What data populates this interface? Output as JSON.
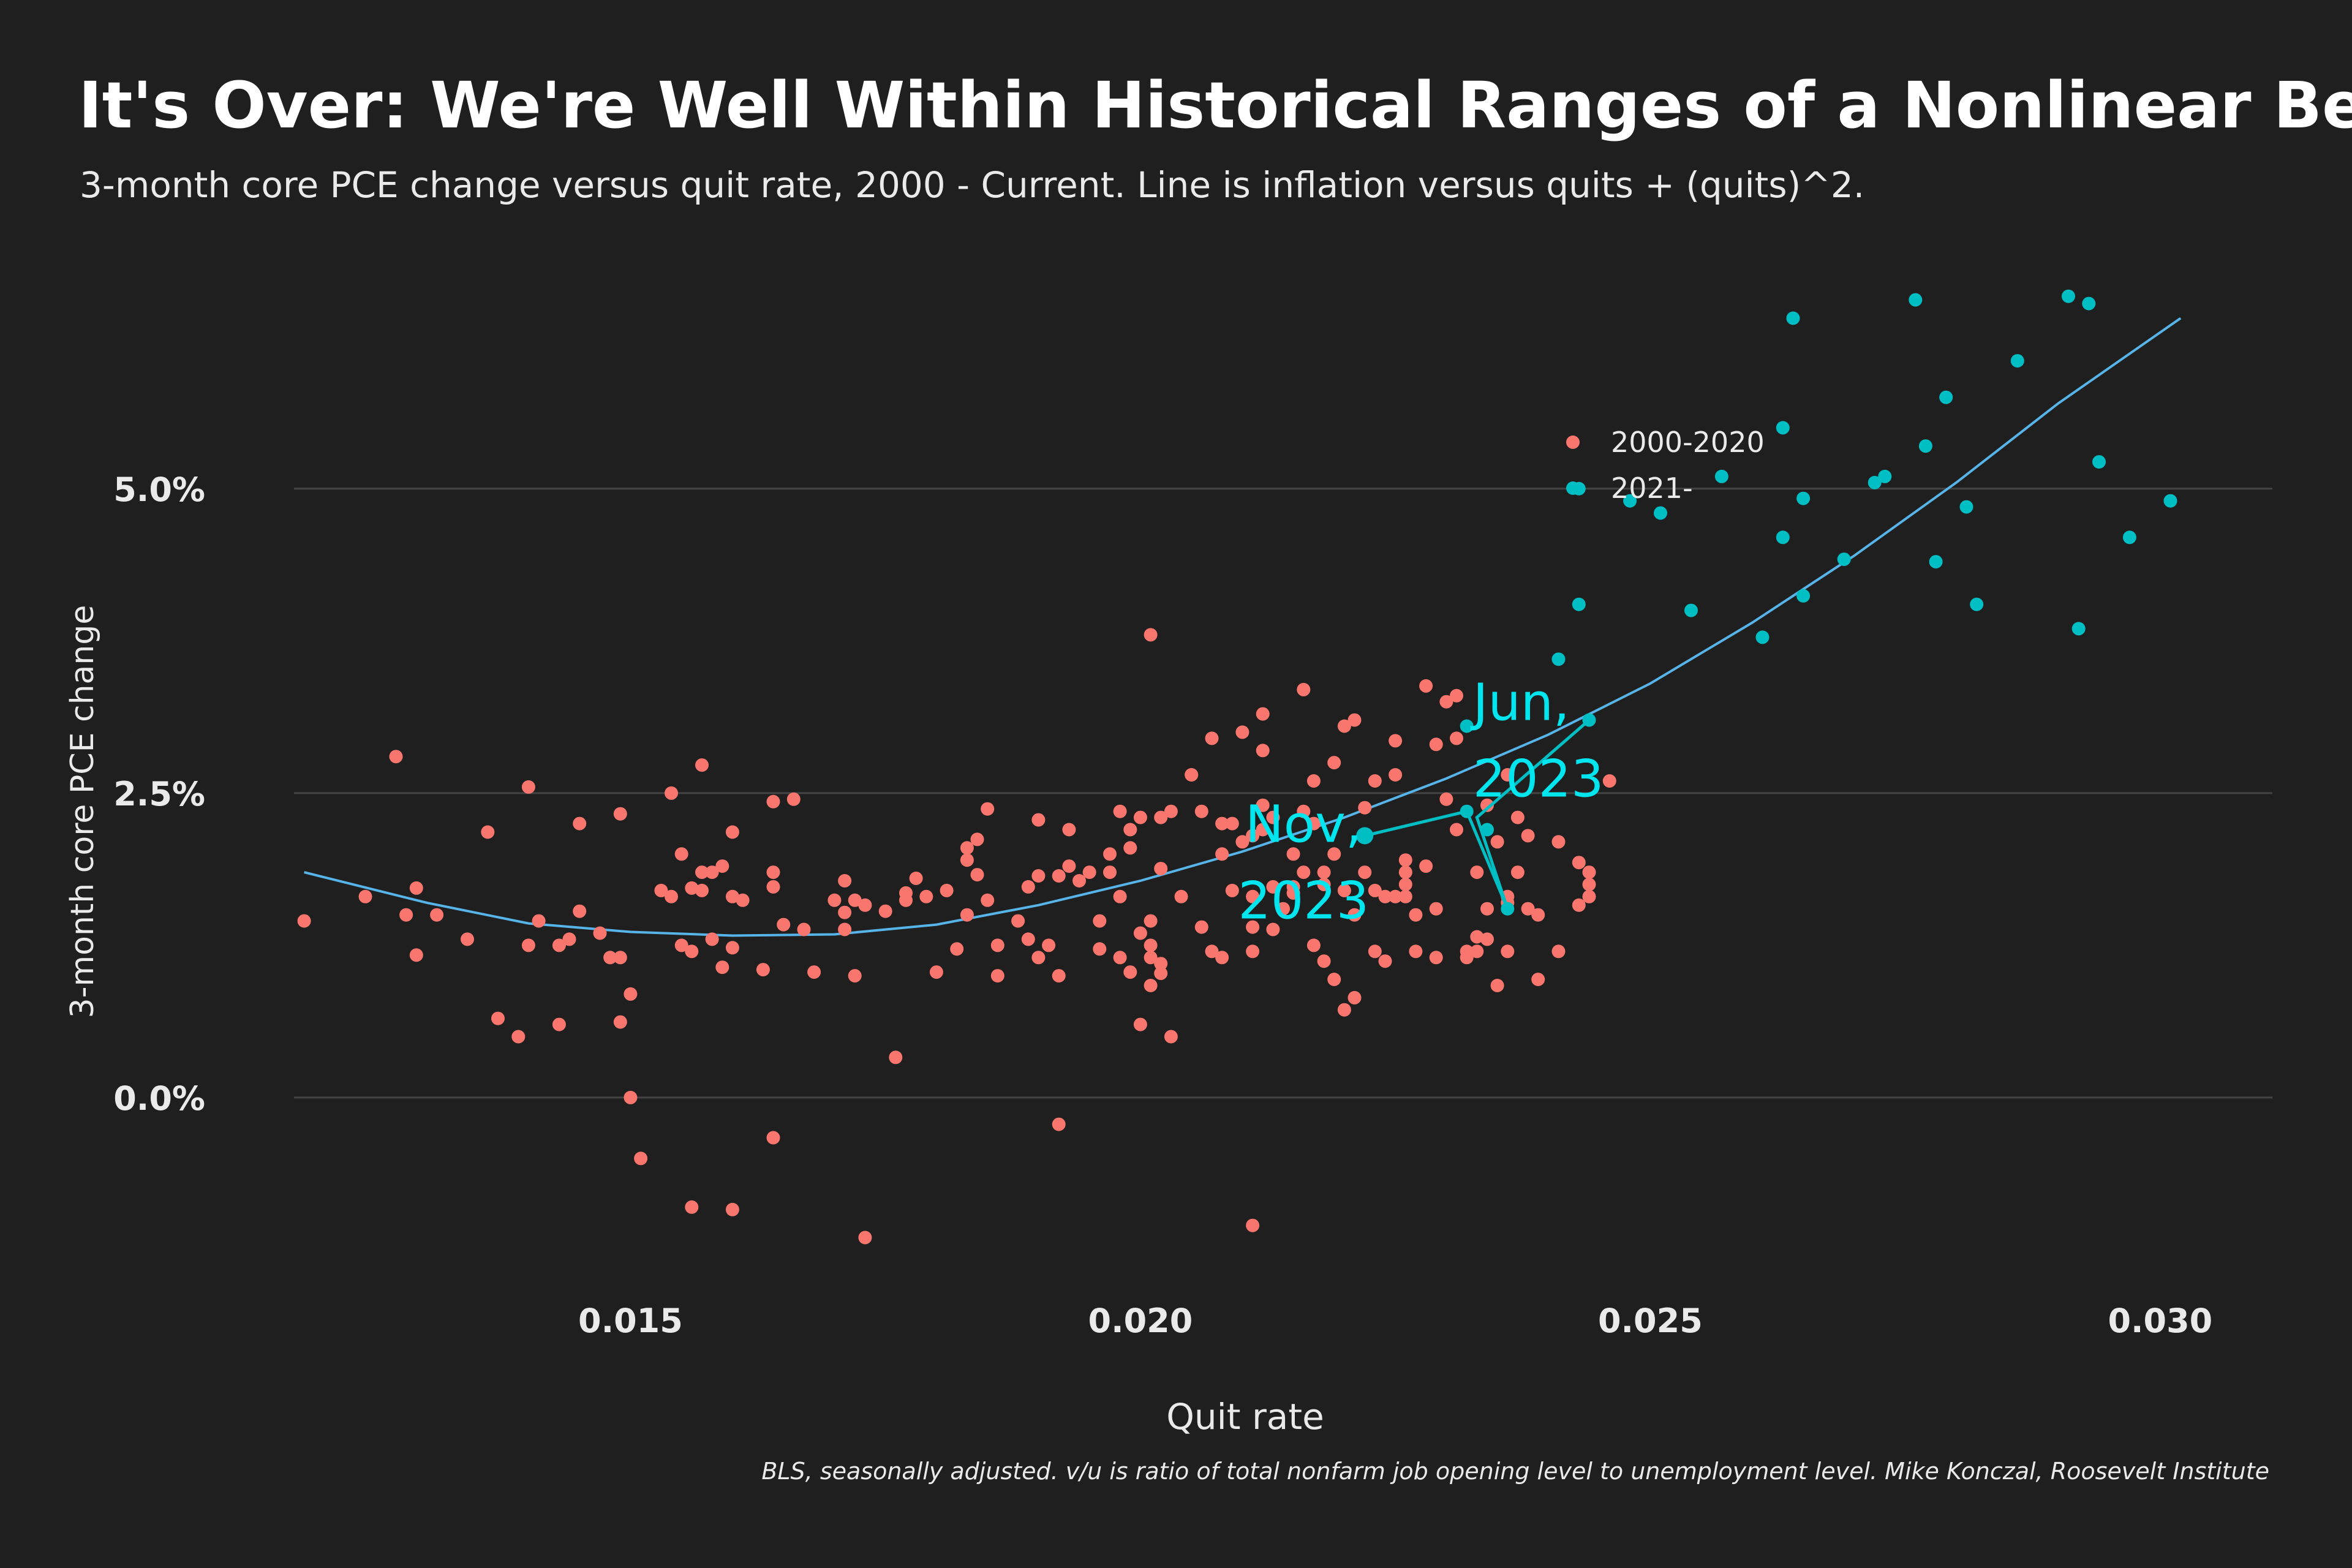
{
  "chart_data": {
    "type": "scatter",
    "title": "It's Over: We're Well Within Historical Ranges of a Nonlinear Beveridge-Phillips Curve",
    "subtitle": "3-month core PCE change versus quit rate, 2000 - Current. Line is inflation versus quits + (quits)^2.",
    "xlabel": "Quit rate",
    "ylabel": "3-month core PCE change",
    "caption": "BLS, seasonally adjusted. v/u is ratio of total nonfarm job opening level to unemployment level. Mike Konczal, Roosevelt Institute",
    "xlim": [
      0.0117,
      0.0311
    ],
    "ylim": [
      -1.6,
      6.85
    ],
    "xticks": [
      0.015,
      0.02,
      0.025,
      0.03
    ],
    "xtick_labels": [
      "0.015",
      "0.020",
      "0.025",
      "0.030"
    ],
    "yticks": [
      0.0,
      2.5,
      5.0
    ],
    "ytick_labels": [
      "0.0%",
      "2.5%",
      "5.0%"
    ],
    "grid": "horizontal",
    "legend_position": "top-right",
    "colors": {
      "s2000": "#f8766d",
      "s2021": "#00bfc4",
      "fit": "#56b4e9",
      "path": "#00bfc4",
      "annotation": "#00e5ee",
      "text": "#eaeaea",
      "grid": "#444444"
    },
    "series": [
      {
        "name": "2000-2020",
        "points": [
          [
            0.0118,
            1.45
          ],
          [
            0.0124,
            1.65
          ],
          [
            0.0127,
            2.8
          ],
          [
            0.0128,
            1.5
          ],
          [
            0.0129,
            1.72
          ],
          [
            0.0129,
            1.17
          ],
          [
            0.0131,
            1.5
          ],
          [
            0.0134,
            1.3
          ],
          [
            0.0136,
            2.18
          ],
          [
            0.0137,
            0.65
          ],
          [
            0.0139,
            0.5
          ],
          [
            0.014,
            1.25
          ],
          [
            0.014,
            2.55
          ],
          [
            0.0141,
            1.45
          ],
          [
            0.0143,
            1.25
          ],
          [
            0.0143,
            0.6
          ],
          [
            0.0144,
            1.3
          ],
          [
            0.0145,
            1.53
          ],
          [
            0.0145,
            2.25
          ],
          [
            0.0147,
            1.35
          ],
          [
            0.0148,
            1.15
          ],
          [
            0.0149,
            0.62
          ],
          [
            0.0149,
            1.15
          ],
          [
            0.0149,
            2.33
          ],
          [
            0.015,
            0.85
          ],
          [
            0.015,
            0.0
          ],
          [
            0.0151,
            -0.5
          ],
          [
            0.0153,
            1.7
          ],
          [
            0.0154,
            1.65
          ],
          [
            0.0154,
            2.5
          ],
          [
            0.0155,
            2.0
          ],
          [
            0.0155,
            1.25
          ],
          [
            0.0156,
            1.2
          ],
          [
            0.0156,
            1.72
          ],
          [
            0.0156,
            -0.9
          ],
          [
            0.0157,
            1.7
          ],
          [
            0.0157,
            1.85
          ],
          [
            0.0157,
            2.73
          ],
          [
            0.0158,
            1.3
          ],
          [
            0.0158,
            1.85
          ],
          [
            0.0159,
            1.9
          ],
          [
            0.0159,
            1.07
          ],
          [
            0.016,
            1.23
          ],
          [
            0.016,
            1.65
          ],
          [
            0.016,
            2.18
          ],
          [
            0.016,
            -0.92
          ],
          [
            0.0161,
            1.62
          ],
          [
            0.0163,
            1.05
          ],
          [
            0.0164,
            1.73
          ],
          [
            0.0164,
            2.43
          ],
          [
            0.0164,
            1.85
          ],
          [
            0.0164,
            -0.33
          ],
          [
            0.0165,
            1.42
          ],
          [
            0.0166,
            2.45
          ],
          [
            0.0167,
            1.38
          ],
          [
            0.0168,
            1.03
          ],
          [
            0.017,
            1.62
          ],
          [
            0.0171,
            1.78
          ],
          [
            0.0171,
            1.52
          ],
          [
            0.0171,
            1.38
          ],
          [
            0.0172,
            1.62
          ],
          [
            0.0172,
            1.0
          ],
          [
            0.0173,
            1.58
          ],
          [
            0.0173,
            -1.15
          ],
          [
            0.0175,
            1.53
          ],
          [
            0.0176,
            0.33
          ],
          [
            0.0177,
            1.62
          ],
          [
            0.0177,
            1.68
          ],
          [
            0.0178,
            1.8
          ],
          [
            0.0179,
            1.65
          ],
          [
            0.018,
            1.03
          ],
          [
            0.0181,
            1.7
          ],
          [
            0.0182,
            1.22
          ],
          [
            0.0183,
            2.05
          ],
          [
            0.0183,
            1.95
          ],
          [
            0.0183,
            1.5
          ],
          [
            0.0184,
            1.83
          ],
          [
            0.0184,
            2.12
          ],
          [
            0.0185,
            2.37
          ],
          [
            0.0185,
            1.62
          ],
          [
            0.0186,
            1.0
          ],
          [
            0.0186,
            1.25
          ],
          [
            0.0188,
            1.45
          ],
          [
            0.0189,
            1.3
          ],
          [
            0.0189,
            1.73
          ],
          [
            0.019,
            1.82
          ],
          [
            0.019,
            2.28
          ],
          [
            0.019,
            1.15
          ],
          [
            0.0191,
            1.25
          ],
          [
            0.0192,
            1.82
          ],
          [
            0.0192,
            1.0
          ],
          [
            0.0192,
            -0.22
          ],
          [
            0.0193,
            1.9
          ],
          [
            0.0193,
            2.2
          ],
          [
            0.0194,
            1.78
          ],
          [
            0.0195,
            1.85
          ],
          [
            0.0196,
            1.45
          ],
          [
            0.0196,
            1.22
          ],
          [
            0.0197,
            1.85
          ],
          [
            0.0197,
            2.0
          ],
          [
            0.0198,
            2.35
          ],
          [
            0.0198,
            1.65
          ],
          [
            0.0198,
            1.15
          ],
          [
            0.0199,
            2.2
          ],
          [
            0.0199,
            2.05
          ],
          [
            0.0199,
            1.03
          ],
          [
            0.02,
            1.35
          ],
          [
            0.02,
            2.3
          ],
          [
            0.02,
            0.6
          ],
          [
            0.0201,
            1.15
          ],
          [
            0.0201,
            1.45
          ],
          [
            0.0201,
            0.92
          ],
          [
            0.0201,
            3.8
          ],
          [
            0.0201,
            1.25
          ],
          [
            0.0202,
            1.88
          ],
          [
            0.0202,
            2.3
          ],
          [
            0.0202,
            1.1
          ],
          [
            0.0202,
            1.02
          ],
          [
            0.0203,
            2.35
          ],
          [
            0.0203,
            0.5
          ],
          [
            0.0204,
            1.65
          ],
          [
            0.0205,
            2.65
          ],
          [
            0.0205,
            2.65
          ],
          [
            0.0206,
            2.35
          ],
          [
            0.0206,
            1.4
          ],
          [
            0.0207,
            2.95
          ],
          [
            0.0207,
            1.2
          ],
          [
            0.0208,
            2.25
          ],
          [
            0.0208,
            1.15
          ],
          [
            0.0208,
            2.0
          ],
          [
            0.0209,
            2.25
          ],
          [
            0.0209,
            1.7
          ],
          [
            0.021,
            3.0
          ],
          [
            0.021,
            2.1
          ],
          [
            0.0211,
            1.65
          ],
          [
            0.0211,
            2.15
          ],
          [
            0.0211,
            1.4
          ],
          [
            0.0211,
            1.2
          ],
          [
            0.0211,
            -1.05
          ],
          [
            0.0212,
            2.4
          ],
          [
            0.0212,
            2.2
          ],
          [
            0.0212,
            3.15
          ],
          [
            0.0212,
            2.85
          ],
          [
            0.0213,
            2.3
          ],
          [
            0.0213,
            1.73
          ],
          [
            0.0213,
            1.38
          ],
          [
            0.0214,
            1.55
          ],
          [
            0.0215,
            1.73
          ],
          [
            0.0215,
            2.0
          ],
          [
            0.0215,
            1.68
          ],
          [
            0.0216,
            3.35
          ],
          [
            0.0216,
            2.35
          ],
          [
            0.0216,
            1.85
          ],
          [
            0.0217,
            2.25
          ],
          [
            0.0217,
            2.6
          ],
          [
            0.0217,
            1.25
          ],
          [
            0.0218,
            1.85
          ],
          [
            0.0218,
            1.75
          ],
          [
            0.0218,
            1.12
          ],
          [
            0.0219,
            2.0
          ],
          [
            0.0219,
            2.75
          ],
          [
            0.0219,
            0.97
          ],
          [
            0.022,
            1.7
          ],
          [
            0.022,
            3.05
          ],
          [
            0.022,
            0.72
          ],
          [
            0.0221,
            1.5
          ],
          [
            0.0221,
            0.82
          ],
          [
            0.0221,
            3.1
          ],
          [
            0.0222,
            1.85
          ],
          [
            0.0222,
            2.38
          ],
          [
            0.0223,
            2.6
          ],
          [
            0.0223,
            1.2
          ],
          [
            0.0223,
            1.7
          ],
          [
            0.0224,
            1.65
          ],
          [
            0.0224,
            1.12
          ],
          [
            0.0225,
            2.93
          ],
          [
            0.0225,
            2.65
          ],
          [
            0.0225,
            1.65
          ],
          [
            0.0226,
            1.65
          ],
          [
            0.0226,
            1.95
          ],
          [
            0.0226,
            1.85
          ],
          [
            0.0226,
            1.75
          ],
          [
            0.0227,
            1.5
          ],
          [
            0.0227,
            1.2
          ],
          [
            0.0228,
            3.38
          ],
          [
            0.0228,
            1.9
          ],
          [
            0.0229,
            1.55
          ],
          [
            0.0229,
            1.15
          ],
          [
            0.0229,
            2.9
          ],
          [
            0.023,
            2.45
          ],
          [
            0.023,
            3.25
          ],
          [
            0.0231,
            2.2
          ],
          [
            0.0231,
            2.95
          ],
          [
            0.0231,
            3.3
          ],
          [
            0.0232,
            1.15
          ],
          [
            0.0232,
            1.2
          ],
          [
            0.0233,
            1.85
          ],
          [
            0.0233,
            1.32
          ],
          [
            0.0233,
            1.2
          ],
          [
            0.0234,
            2.4
          ],
          [
            0.0234,
            1.3
          ],
          [
            0.0234,
            1.55
          ],
          [
            0.0235,
            2.1
          ],
          [
            0.0235,
            0.92
          ],
          [
            0.0236,
            2.65
          ],
          [
            0.0236,
            1.6
          ],
          [
            0.0236,
            1.65
          ],
          [
            0.0236,
            1.2
          ],
          [
            0.0237,
            2.3
          ],
          [
            0.0237,
            1.85
          ],
          [
            0.0238,
            1.55
          ],
          [
            0.0238,
            2.15
          ],
          [
            0.0239,
            1.5
          ],
          [
            0.0239,
            0.97
          ],
          [
            0.0241,
            2.1
          ],
          [
            0.0241,
            1.2
          ],
          [
            0.0243,
            1.58
          ],
          [
            0.0243,
            1.93
          ],
          [
            0.0244,
            1.85
          ],
          [
            0.0244,
            1.75
          ],
          [
            0.0244,
            1.65
          ],
          [
            0.0246,
            2.6
          ]
        ]
      },
      {
        "name": "2021-",
        "points": [
          [
            0.0241,
            3.6
          ],
          [
            0.0243,
            4.05
          ],
          [
            0.0243,
            5.0
          ],
          [
            0.0244,
            3.1
          ],
          [
            0.0248,
            4.9
          ],
          [
            0.0251,
            4.8
          ],
          [
            0.0254,
            4.0
          ],
          [
            0.0257,
            5.1
          ],
          [
            0.0261,
            3.78
          ],
          [
            0.0263,
            4.6
          ],
          [
            0.0263,
            5.5
          ],
          [
            0.0264,
            6.4
          ],
          [
            0.0265,
            4.92
          ],
          [
            0.0265,
            4.12
          ],
          [
            0.0269,
            4.42
          ],
          [
            0.0272,
            5.05
          ],
          [
            0.0273,
            5.1
          ],
          [
            0.0276,
            6.55
          ],
          [
            0.0277,
            5.35
          ],
          [
            0.0278,
            4.4
          ],
          [
            0.0279,
            5.75
          ],
          [
            0.0281,
            4.85
          ],
          [
            0.0282,
            4.05
          ],
          [
            0.0286,
            6.05
          ],
          [
            0.0291,
            6.58
          ],
          [
            0.0292,
            3.85
          ],
          [
            0.0293,
            6.52
          ],
          [
            0.0294,
            5.22
          ],
          [
            0.0297,
            4.6
          ],
          [
            0.0301,
            4.9
          ],
          [
            0.0236,
            1.55
          ],
          [
            0.0234,
            2.2
          ],
          [
            0.0232,
            2.35
          ],
          [
            0.0232,
            3.05
          ]
        ]
      }
    ],
    "fit_curve": [
      [
        0.0118,
        1.85
      ],
      [
        0.013,
        1.6
      ],
      [
        0.014,
        1.43
      ],
      [
        0.015,
        1.36
      ],
      [
        0.016,
        1.33
      ],
      [
        0.017,
        1.34
      ],
      [
        0.018,
        1.42
      ],
      [
        0.019,
        1.58
      ],
      [
        0.02,
        1.78
      ],
      [
        0.021,
        2.02
      ],
      [
        0.022,
        2.3
      ],
      [
        0.023,
        2.62
      ],
      [
        0.024,
        2.98
      ],
      [
        0.025,
        3.4
      ],
      [
        0.026,
        3.9
      ],
      [
        0.027,
        4.45
      ],
      [
        0.028,
        5.05
      ],
      [
        0.029,
        5.7
      ],
      [
        0.0302,
        6.4
      ]
    ],
    "recent_path": [
      [
        0.0244,
        3.1
      ],
      [
        0.0233,
        2.3
      ],
      [
        0.0236,
        1.55
      ],
      [
        0.0232,
        2.35
      ],
      [
        0.0222,
        2.15
      ]
    ],
    "annotations": [
      {
        "label": "Jun, 2023",
        "x": 0.0232,
        "y": 2.3
      },
      {
        "label": "Nov, 2023",
        "x": 0.0222,
        "y": 2.15
      }
    ]
  }
}
